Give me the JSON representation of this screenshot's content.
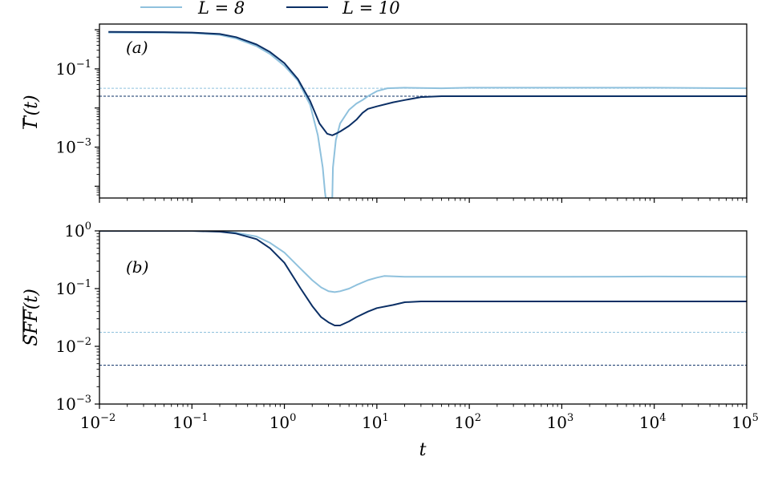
{
  "colors": {
    "light": "#8fc1dd",
    "dark": "#0b2f65"
  },
  "legend": [
    {
      "label": "L = 8",
      "color": "#8fc1dd"
    },
    {
      "label": "L = 10",
      "color": "#0b2f65"
    }
  ],
  "x_label": "t",
  "x_ticks": [
    {
      "base": "10",
      "exp": "−2",
      "value": 0.01
    },
    {
      "base": "10",
      "exp": "−1",
      "value": 0.1
    },
    {
      "base": "10",
      "exp": "0",
      "value": 1
    },
    {
      "base": "10",
      "exp": "1",
      "value": 10
    },
    {
      "base": "10",
      "exp": "2",
      "value": 100
    },
    {
      "base": "10",
      "exp": "3",
      "value": 1000
    },
    {
      "base": "10",
      "exp": "4",
      "value": 10000
    },
    {
      "base": "10",
      "exp": "5",
      "value": 100000
    }
  ],
  "chart_data": [
    {
      "type": "line",
      "panel": "(a)",
      "ylabel": "Γ(t)",
      "xscale": "log",
      "yscale": "log",
      "xlim": [
        0.01,
        100000
      ],
      "ylim": [
        5e-05,
        1.4
      ],
      "y_ticks": [
        {
          "base": "10",
          "exp": "−1",
          "value": 0.1
        },
        {
          "base": "10",
          "exp": "−3",
          "value": 0.001
        }
      ],
      "hlines": [
        {
          "series": "L = 8",
          "y": 0.032
        },
        {
          "series": "L = 10",
          "y": 0.02
        }
      ],
      "series": [
        {
          "name": "L = 8",
          "x": [
            0.0125,
            0.05,
            0.1,
            0.2,
            0.3,
            0.5,
            0.7,
            1.0,
            1.4,
            1.9,
            2.3,
            2.6,
            2.75,
            2.8,
            3.3,
            3.35,
            3.6,
            4.0,
            5.0,
            6.0,
            7.0,
            8.0,
            10.0,
            13.0,
            20.0,
            50.0,
            100.0,
            1000.0,
            10000.0,
            100000.0
          ],
          "y": [
            0.85,
            0.84,
            0.82,
            0.74,
            0.6,
            0.38,
            0.24,
            0.12,
            0.05,
            0.012,
            0.002,
            0.0003,
            7e-05,
            5e-05,
            5e-05,
            0.0003,
            0.0015,
            0.004,
            0.009,
            0.013,
            0.016,
            0.02,
            0.027,
            0.032,
            0.033,
            0.032,
            0.033,
            0.033,
            0.033,
            0.032
          ]
        },
        {
          "name": "L = 10",
          "x": [
            0.0125,
            0.05,
            0.1,
            0.2,
            0.3,
            0.5,
            0.7,
            1.0,
            1.4,
            1.9,
            2.4,
            2.9,
            3.3,
            3.6,
            4.0,
            5.0,
            6.0,
            7.0,
            8.0,
            10.0,
            15.0,
            20.0,
            30.0,
            50.0,
            100.0,
            1000.0,
            10000.0,
            100000.0
          ],
          "y": [
            0.88,
            0.87,
            0.85,
            0.78,
            0.65,
            0.42,
            0.27,
            0.14,
            0.055,
            0.015,
            0.004,
            0.0022,
            0.002,
            0.0022,
            0.0025,
            0.0035,
            0.005,
            0.0075,
            0.0095,
            0.011,
            0.014,
            0.016,
            0.019,
            0.02,
            0.02,
            0.02,
            0.02,
            0.02
          ]
        }
      ]
    },
    {
      "type": "line",
      "panel": "(b)",
      "ylabel": "SFF(t)",
      "xscale": "log",
      "yscale": "log",
      "xlim": [
        0.01,
        100000
      ],
      "ylim": [
        0.001,
        1
      ],
      "y_ticks": [
        {
          "base": "10",
          "exp": "0",
          "value": 1
        },
        {
          "base": "10",
          "exp": "−1",
          "value": 0.1
        },
        {
          "base": "10",
          "exp": "−2",
          "value": 0.01
        },
        {
          "base": "10",
          "exp": "−3",
          "value": 0.001
        }
      ],
      "hlines": [
        {
          "series": "L = 8",
          "y": 0.0175
        },
        {
          "series": "L = 10",
          "y": 0.0047
        }
      ],
      "series": [
        {
          "name": "L = 8",
          "x": [
            0.01,
            0.1,
            0.2,
            0.3,
            0.5,
            0.7,
            1.0,
            1.5,
            2.0,
            2.5,
            3.0,
            3.5,
            4.0,
            5.0,
            6.0,
            8.0,
            10.0,
            12.0,
            20.0,
            100.0,
            1000.0,
            10000.0,
            100000.0
          ],
          "y": [
            1.0,
            1.0,
            0.98,
            0.93,
            0.8,
            0.62,
            0.42,
            0.22,
            0.14,
            0.105,
            0.09,
            0.087,
            0.09,
            0.1,
            0.115,
            0.14,
            0.155,
            0.165,
            0.16,
            0.16,
            0.16,
            0.162,
            0.16
          ]
        },
        {
          "name": "L = 10",
          "x": [
            0.01,
            0.1,
            0.2,
            0.3,
            0.5,
            0.7,
            1.0,
            1.5,
            2.0,
            2.5,
            3.0,
            3.5,
            4.0,
            5.0,
            6.0,
            8.0,
            10.0,
            15.0,
            20.0,
            30.0,
            100.0,
            1000.0,
            10000.0,
            100000.0
          ],
          "y": [
            1.0,
            1.0,
            0.97,
            0.9,
            0.72,
            0.5,
            0.28,
            0.1,
            0.05,
            0.032,
            0.026,
            0.023,
            0.023,
            0.027,
            0.032,
            0.04,
            0.046,
            0.052,
            0.058,
            0.06,
            0.06,
            0.06,
            0.06,
            0.06
          ]
        }
      ]
    }
  ]
}
